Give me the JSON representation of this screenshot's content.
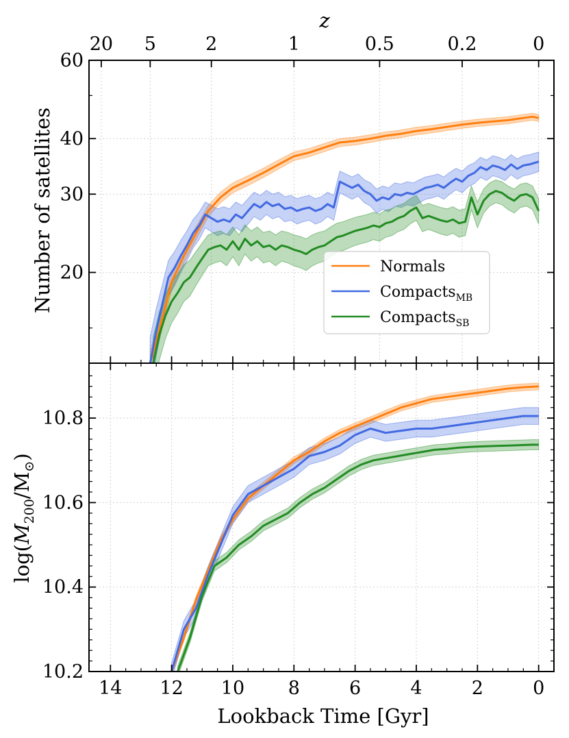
{
  "chart_data": [
    {
      "panel": "top",
      "type": "line",
      "ylabel": "Number of satellites",
      "yscale": "log",
      "ylim": [
        12.5,
        60
      ],
      "xlim": [
        14.7,
        -0.5
      ],
      "yticks": [
        20,
        30,
        40,
        60
      ],
      "yticklabels": [
        "20",
        "30",
        "40",
        "60"
      ],
      "top_axis_label": "z",
      "top_ticks": [
        {
          "label": "20",
          "t": 14.3
        },
        {
          "label": "5",
          "t": 12.7
        },
        {
          "label": "2",
          "t": 10.7
        },
        {
          "label": "1",
          "t": 8.0
        },
        {
          "label": "0.5",
          "t": 5.2
        },
        {
          "label": "0.2",
          "t": 2.5
        },
        {
          "label": "0",
          "t": 0.0
        }
      ],
      "grid": true,
      "legend_position": "lower-right",
      "legend": [
        {
          "label": "Normals",
          "color": "#ff7f0e"
        },
        {
          "label": "Compacts",
          "sub": "MB",
          "color": "#4169e1"
        },
        {
          "label": "Compacts",
          "sub": "SB",
          "color": "#228b22"
        }
      ],
      "series": [
        {
          "name": "Normals",
          "color": "#ff7f0e",
          "band": 0.8,
          "x": [
            12.7,
            12.3,
            12.0,
            11.6,
            11.2,
            10.8,
            10.4,
            10.0,
            9.5,
            9.0,
            8.5,
            8.0,
            7.5,
            7.0,
            6.5,
            6.0,
            5.5,
            5.0,
            4.5,
            4.0,
            3.5,
            3.0,
            2.5,
            2.0,
            1.5,
            1.0,
            0.5,
            0.2,
            0.0
          ],
          "y": [
            12.5,
            15.8,
            19.0,
            21.8,
            24.5,
            27.5,
            29.5,
            31.0,
            32.2,
            33.5,
            35.0,
            36.5,
            37.2,
            38.2,
            39.2,
            39.5,
            40.0,
            40.6,
            41.0,
            41.6,
            42.0,
            42.5,
            43.0,
            43.4,
            43.7,
            44.0,
            44.5,
            44.8,
            44.5
          ]
        },
        {
          "name": "Compacts_MB",
          "color": "#4169e1",
          "band": 1.8,
          "x": [
            12.7,
            12.5,
            12.3,
            12.1,
            11.9,
            11.7,
            11.5,
            11.3,
            11.1,
            10.9,
            10.7,
            10.5,
            10.3,
            10.1,
            9.9,
            9.7,
            9.5,
            9.3,
            9.1,
            8.9,
            8.7,
            8.5,
            8.3,
            8.1,
            7.9,
            7.7,
            7.5,
            7.3,
            7.1,
            6.9,
            6.7,
            6.5,
            6.3,
            6.1,
            5.9,
            5.7,
            5.5,
            5.3,
            5.1,
            4.9,
            4.7,
            4.5,
            4.3,
            4.1,
            3.9,
            3.7,
            3.5,
            3.3,
            3.1,
            2.9,
            2.7,
            2.5,
            2.3,
            2.1,
            1.9,
            1.7,
            1.5,
            1.3,
            1.1,
            0.9,
            0.7,
            0.5,
            0.3,
            0.0
          ],
          "y": [
            12.5,
            14.8,
            17.0,
            19.5,
            20.5,
            21.8,
            23.0,
            24.5,
            25.5,
            27.0,
            26.5,
            26.0,
            26.3,
            26.0,
            27.0,
            26.5,
            27.5,
            28.5,
            28.0,
            28.8,
            28.2,
            28.5,
            27.8,
            28.0,
            27.5,
            27.8,
            28.0,
            27.5,
            27.8,
            28.5,
            28.0,
            32.0,
            31.5,
            31.0,
            31.5,
            30.5,
            30.0,
            29.0,
            29.5,
            29.2,
            30.0,
            29.8,
            30.2,
            30.0,
            30.5,
            31.0,
            31.2,
            31.5,
            31.0,
            31.8,
            32.5,
            32.0,
            33.0,
            33.5,
            34.5,
            34.0,
            34.8,
            34.5,
            34.0,
            35.0,
            34.2,
            34.8,
            35.0,
            35.5
          ]
        },
        {
          "name": "Compacts_SB",
          "color": "#228b22",
          "band": 1.8,
          "x": [
            12.6,
            12.4,
            12.2,
            12.0,
            11.8,
            11.6,
            11.4,
            11.2,
            11.0,
            10.8,
            10.6,
            10.4,
            10.2,
            10.0,
            9.8,
            9.6,
            9.4,
            9.2,
            9.0,
            8.8,
            8.6,
            8.4,
            8.2,
            8.0,
            7.8,
            7.6,
            7.4,
            7.2,
            7.0,
            6.8,
            6.6,
            6.4,
            6.2,
            6.0,
            5.8,
            5.6,
            5.4,
            5.2,
            5.0,
            4.8,
            4.6,
            4.4,
            4.2,
            4.0,
            3.8,
            3.6,
            3.4,
            3.2,
            3.0,
            2.8,
            2.6,
            2.4,
            2.2,
            2.0,
            1.8,
            1.6,
            1.4,
            1.2,
            1.0,
            0.8,
            0.6,
            0.4,
            0.2,
            0.0
          ],
          "y": [
            12.5,
            14.5,
            16.0,
            17.2,
            18.0,
            19.0,
            19.5,
            20.5,
            21.5,
            22.5,
            22.8,
            23.0,
            22.5,
            23.5,
            22.5,
            23.8,
            23.0,
            23.5,
            22.8,
            23.0,
            22.5,
            23.0,
            22.8,
            22.5,
            22.3,
            22.0,
            22.5,
            22.8,
            23.0,
            23.5,
            24.0,
            24.2,
            24.5,
            24.8,
            25.0,
            25.2,
            25.5,
            25.3,
            25.8,
            26.0,
            26.5,
            26.8,
            27.5,
            28.0,
            26.5,
            26.8,
            26.5,
            26.2,
            26.0,
            26.3,
            25.8,
            26.0,
            29.5,
            27.0,
            29.0,
            30.0,
            30.5,
            30.2,
            29.5,
            29.0,
            29.8,
            30.0,
            29.5,
            27.5
          ]
        }
      ]
    },
    {
      "panel": "bottom",
      "type": "line",
      "xlabel": "Lookback Time [Gyr]",
      "ylabel": "log(M200/M⊙)",
      "ylabel_main": "log(",
      "ylabel_M": "M",
      "ylabel_sub": "200",
      "ylabel_mid": "/M",
      "ylabel_sun": "⊙",
      "ylabel_end": ")",
      "ylim": [
        10.2,
        10.93
      ],
      "xlim": [
        14.7,
        -0.5
      ],
      "xticks": [
        14,
        12,
        10,
        8,
        6,
        4,
        2,
        0
      ],
      "xticklabels": [
        "14",
        "12",
        "10",
        "8",
        "6",
        "4",
        "2",
        "0"
      ],
      "yticks": [
        10.2,
        10.4,
        10.6,
        10.8
      ],
      "yticklabels": [
        "10.2",
        "10.4",
        "10.6",
        "10.8"
      ],
      "grid": true,
      "series": [
        {
          "name": "Normals",
          "color": "#ff7f0e",
          "band": 0.008,
          "x": [
            12.0,
            11.6,
            11.2,
            10.8,
            10.4,
            10.0,
            9.5,
            9.0,
            8.5,
            8.0,
            7.5,
            7.0,
            6.5,
            6.0,
            5.5,
            5.0,
            4.5,
            4.0,
            3.5,
            3.0,
            2.5,
            2.0,
            1.5,
            1.0,
            0.5,
            0.0
          ],
          "y": [
            10.2,
            10.28,
            10.37,
            10.44,
            10.51,
            10.56,
            10.61,
            10.64,
            10.67,
            10.7,
            10.72,
            10.745,
            10.765,
            10.78,
            10.795,
            10.81,
            10.825,
            10.835,
            10.845,
            10.85,
            10.855,
            10.86,
            10.865,
            10.87,
            10.873,
            10.875
          ]
        },
        {
          "name": "Compacts_MB",
          "color": "#4169e1",
          "band": 0.02,
          "x": [
            12.0,
            11.6,
            11.2,
            10.8,
            10.4,
            10.0,
            9.5,
            9.0,
            8.5,
            8.0,
            7.5,
            7.0,
            6.5,
            6.0,
            5.5,
            5.0,
            4.5,
            4.0,
            3.5,
            3.0,
            2.5,
            2.0,
            1.5,
            1.0,
            0.5,
            0.0
          ],
          "y": [
            10.2,
            10.3,
            10.35,
            10.43,
            10.5,
            10.57,
            10.62,
            10.64,
            10.66,
            10.68,
            10.71,
            10.72,
            10.735,
            10.76,
            10.775,
            10.765,
            10.77,
            10.775,
            10.775,
            10.78,
            10.785,
            10.79,
            10.795,
            10.8,
            10.805,
            10.805
          ]
        },
        {
          "name": "Compacts_SB",
          "color": "#228b22",
          "band": 0.012,
          "x": [
            11.8,
            11.4,
            11.0,
            10.6,
            10.2,
            9.8,
            9.4,
            9.0,
            8.6,
            8.2,
            7.8,
            7.4,
            7.0,
            6.6,
            6.2,
            5.8,
            5.4,
            5.0,
            4.6,
            4.2,
            3.8,
            3.4,
            3.0,
            2.6,
            2.2,
            1.8,
            1.4,
            1.0,
            0.6,
            0.2,
            0.0
          ],
          "y": [
            10.2,
            10.28,
            10.38,
            10.45,
            10.47,
            10.5,
            10.52,
            10.545,
            10.56,
            10.575,
            10.6,
            10.62,
            10.635,
            10.655,
            10.675,
            10.69,
            10.7,
            10.705,
            10.71,
            10.715,
            10.72,
            10.725,
            10.727,
            10.73,
            10.732,
            10.733,
            10.734,
            10.735,
            10.736,
            10.737,
            10.737
          ]
        }
      ]
    }
  ]
}
